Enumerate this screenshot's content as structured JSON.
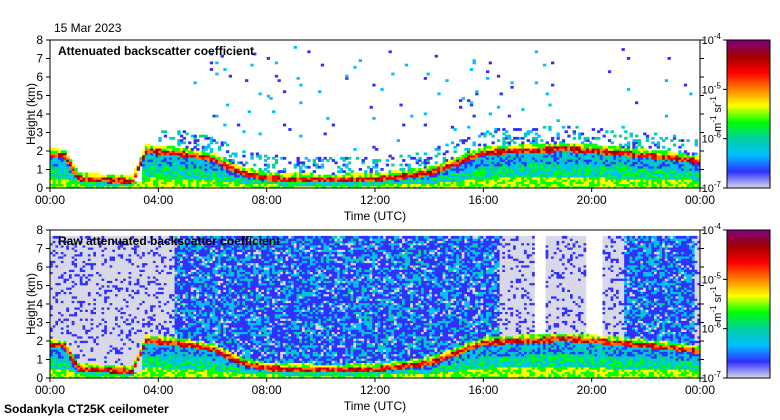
{
  "date_label": "15 Mar 2023",
  "footer_label": "Sodankyla CT25K ceilometer",
  "colormap": [
    "#ffffff",
    "#d8d8e8",
    "#3030ff",
    "#00c0ff",
    "#00d0a0",
    "#00ff00",
    "#ffff00",
    "#ff8000",
    "#ff0000",
    "#a00000",
    "#800080"
  ],
  "chart_data": [
    {
      "type": "heatmap",
      "title": "Attenuated backscatter coefficient",
      "xlabel": "Time (UTC)",
      "ylabel": "Height (km)",
      "xlim": [
        "00:00",
        "24:00"
      ],
      "ylim": [
        0,
        8
      ],
      "x_ticks": [
        "00:00",
        "04:00",
        "08:00",
        "12:00",
        "16:00",
        "20:00",
        "00:00"
      ],
      "y_ticks": [
        "0",
        "1",
        "2",
        "3",
        "4",
        "5",
        "6",
        "7",
        "8"
      ],
      "grid": false,
      "colorbar": {
        "label_main": "m",
        "label_exp1": "-1",
        "label_mid": " sr",
        "label_exp2": "-1",
        "scale": "log",
        "tick_bases": [
          "10",
          "10",
          "10",
          "10"
        ],
        "tick_exps": [
          "-4",
          "-5",
          "-6",
          "-7"
        ],
        "tick_values": [
          0.0001,
          1e-05,
          1e-06,
          1e-07
        ]
      },
      "layer_height_km": [
        [
          0,
          1.8
        ],
        [
          0.5,
          1.7
        ],
        [
          1,
          0.5
        ],
        [
          2,
          0.4
        ],
        [
          3,
          0.35
        ],
        [
          3.5,
          2.0
        ],
        [
          5,
          1.8
        ],
        [
          6,
          1.5
        ],
        [
          7,
          0.8
        ],
        [
          8,
          0.5
        ],
        [
          10,
          0.4
        ],
        [
          12,
          0.45
        ],
        [
          14,
          0.8
        ],
        [
          16,
          1.9
        ],
        [
          17.5,
          2.0
        ],
        [
          19,
          2.1
        ],
        [
          20,
          2.0
        ],
        [
          21.5,
          1.8
        ],
        [
          23,
          1.6
        ],
        [
          24,
          1.4
        ]
      ],
      "noise": false
    },
    {
      "type": "heatmap",
      "title": "Raw attenuated backscatter coefficient",
      "xlabel": "Time (UTC)",
      "ylabel": "Height (km)",
      "xlim": [
        "00:00",
        "24:00"
      ],
      "ylim": [
        0,
        8
      ],
      "x_ticks": [
        "00:00",
        "04:00",
        "08:00",
        "12:00",
        "16:00",
        "20:00",
        "00:00"
      ],
      "y_ticks": [
        "0",
        "1",
        "2",
        "3",
        "4",
        "5",
        "6",
        "7",
        "8"
      ],
      "grid": false,
      "colorbar": {
        "label_main": "m",
        "label_exp1": "-1",
        "label_mid": " sr",
        "label_exp2": "-1",
        "scale": "log",
        "tick_bases": [
          "10",
          "10",
          "10",
          "10"
        ],
        "tick_exps": [
          "-4",
          "-5",
          "-6",
          "-7"
        ],
        "tick_values": [
          0.0001,
          1e-05,
          1e-06,
          1e-07
        ]
      },
      "layer_height_km": [
        [
          0,
          1.8
        ],
        [
          0.5,
          1.7
        ],
        [
          1,
          0.5
        ],
        [
          2,
          0.4
        ],
        [
          3,
          0.35
        ],
        [
          3.5,
          2.0
        ],
        [
          5,
          1.8
        ],
        [
          6,
          1.5
        ],
        [
          7,
          0.8
        ],
        [
          8,
          0.5
        ],
        [
          10,
          0.4
        ],
        [
          12,
          0.45
        ],
        [
          14,
          0.8
        ],
        [
          16,
          1.9
        ],
        [
          17.5,
          2.0
        ],
        [
          19,
          2.1
        ],
        [
          20,
          2.0
        ],
        [
          21.5,
          1.8
        ],
        [
          23,
          1.6
        ],
        [
          24,
          1.4
        ]
      ],
      "noise": true
    }
  ]
}
